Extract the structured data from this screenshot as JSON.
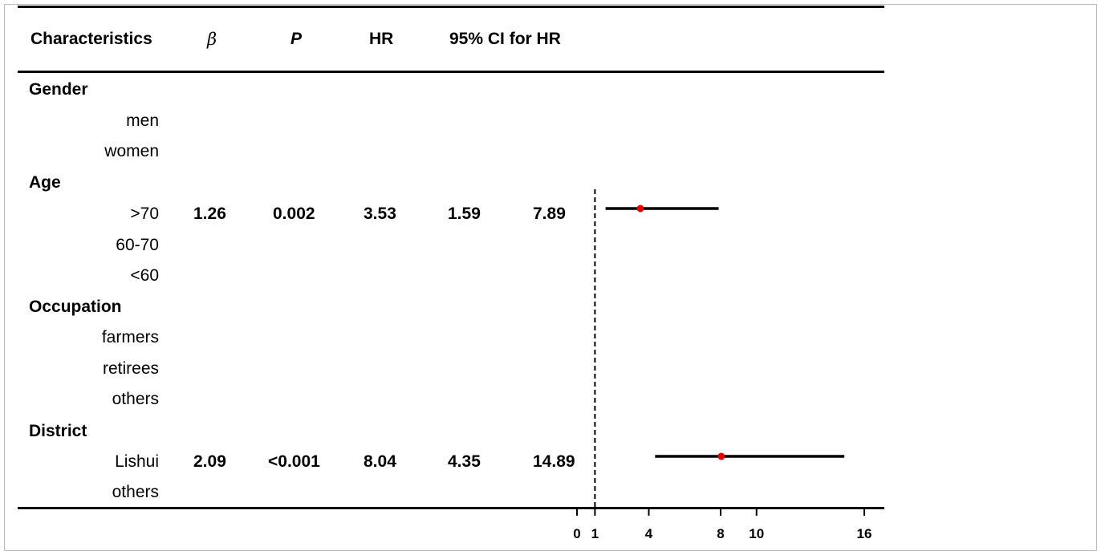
{
  "headers": {
    "characteristics": "Characteristics",
    "beta": "β",
    "p": "P",
    "hr": "HR",
    "ci": "95% CI for HR"
  },
  "rows": [
    {
      "label": "Gender",
      "group": true
    },
    {
      "label": "men",
      "group": false
    },
    {
      "label": "women",
      "group": false
    },
    {
      "label": "Age",
      "group": true
    },
    {
      "label": ">70",
      "group": false,
      "beta": "1.26",
      "p": "0.002",
      "hr": "3.53",
      "ci_low": "1.59",
      "ci_high": "7.89"
    },
    {
      "label": "60-70",
      "group": false
    },
    {
      "label": "<60",
      "group": false
    },
    {
      "label": "Occupation",
      "group": true
    },
    {
      "label": "farmers",
      "group": false
    },
    {
      "label": "retirees",
      "group": false
    },
    {
      "label": "others",
      "group": false
    },
    {
      "label": "District",
      "group": true
    },
    {
      "label": "Lishui",
      "group": false,
      "beta": "2.09",
      "p": "<0.001",
      "hr": "8.04",
      "ci_low": "4.35",
      "ci_high": "14.89"
    },
    {
      "label": "others",
      "group": false
    }
  ],
  "chart_data": {
    "type": "forest",
    "x_ticks": [
      0,
      1,
      4,
      8,
      10,
      16
    ],
    "xlim": [
      0,
      16
    ],
    "reference_line": 1,
    "point_color": "#e00000",
    "points": [
      {
        "label": ">70",
        "hr": 3.53,
        "ci_low": 1.59,
        "ci_high": 7.89
      },
      {
        "label": "Lishui",
        "hr": 8.04,
        "ci_low": 4.35,
        "ci_high": 14.89
      }
    ]
  }
}
